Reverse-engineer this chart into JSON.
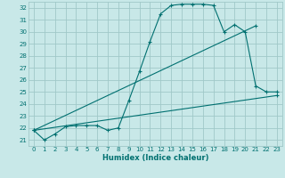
{
  "title": "",
  "xlabel": "Humidex (Indice chaleur)",
  "ylabel": "",
  "bg_color": "#c8e8e8",
  "grid_color": "#a0c8c8",
  "line_color": "#007070",
  "xlim": [
    -0.5,
    23.5
  ],
  "ylim": [
    20.5,
    32.5
  ],
  "yticks": [
    21,
    22,
    23,
    24,
    25,
    26,
    27,
    28,
    29,
    30,
    31,
    32
  ],
  "xticks": [
    0,
    1,
    2,
    3,
    4,
    5,
    6,
    7,
    8,
    9,
    10,
    11,
    12,
    13,
    14,
    15,
    16,
    17,
    18,
    19,
    20,
    21,
    22,
    23
  ],
  "curve_x": [
    0,
    1,
    2,
    3,
    4,
    5,
    6,
    7,
    8,
    9,
    10,
    11,
    12,
    13,
    14,
    15,
    16,
    17,
    18,
    19,
    20,
    21,
    22,
    23
  ],
  "curve_y": [
    21.8,
    21.0,
    21.5,
    22.1,
    22.2,
    22.2,
    22.2,
    21.8,
    22.0,
    24.3,
    26.7,
    29.2,
    31.5,
    32.2,
    32.3,
    32.3,
    32.3,
    32.2,
    30.0,
    30.6,
    30.0,
    25.5,
    25.0,
    25.0
  ],
  "line1_x": [
    0,
    21
  ],
  "line1_y": [
    21.8,
    30.5
  ],
  "line2_x": [
    0,
    23
  ],
  "line2_y": [
    21.8,
    24.7
  ]
}
